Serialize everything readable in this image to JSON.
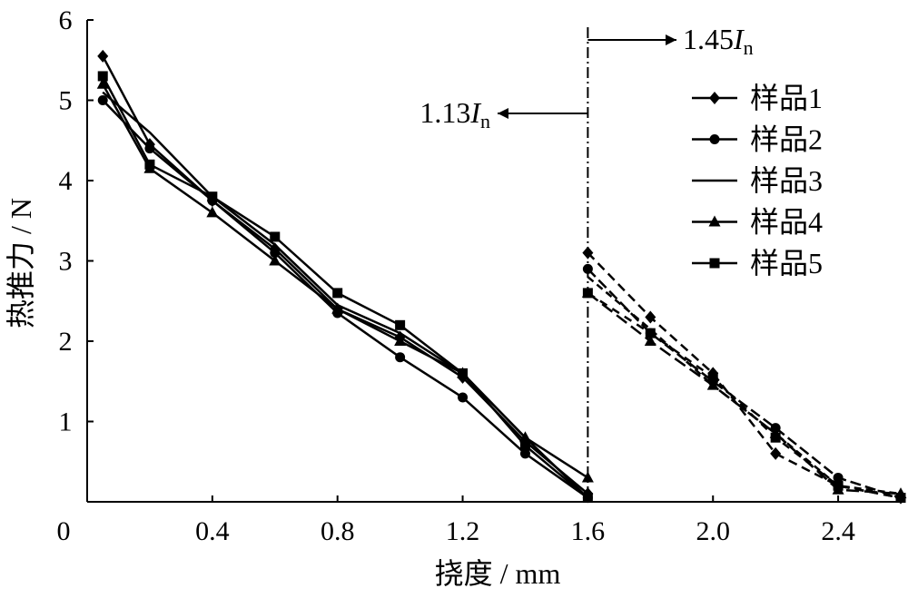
{
  "chart_data": {
    "type": "line",
    "xlabel": "挠度 / mm",
    "ylabel": "热推力 / N",
    "xlim": [
      0,
      2.6
    ],
    "ylim": [
      0,
      6
    ],
    "x_ticks": [
      {
        "value": 0,
        "label": "0"
      },
      {
        "value": 0.4,
        "label": "0.4"
      },
      {
        "value": 0.8,
        "label": "0.8"
      },
      {
        "value": 1.2,
        "label": "1.2"
      },
      {
        "value": 1.6,
        "label": "1.6"
      },
      {
        "value": 2.0,
        "label": "2.0"
      },
      {
        "value": 2.4,
        "label": "2.4"
      }
    ],
    "y_ticks": [
      {
        "value": 1,
        "label": "1"
      },
      {
        "value": 2,
        "label": "2"
      },
      {
        "value": 3,
        "label": "3"
      },
      {
        "value": 4,
        "label": "4"
      },
      {
        "value": 5,
        "label": "5"
      },
      {
        "value": 6,
        "label": "6"
      }
    ],
    "grid": false,
    "legend_position": "right",
    "divider_x": 1.6,
    "annotations": [
      {
        "name": "annot-113",
        "prefix": "1.13",
        "italic": "I",
        "sub": "n",
        "direction": "left"
      },
      {
        "name": "annot-145",
        "prefix": "1.45",
        "italic": "I",
        "sub": "n",
        "direction": "right"
      }
    ],
    "series": [
      {
        "name": "样品1",
        "marker": "diamond",
        "segment1": [
          [
            0.05,
            5.55
          ],
          [
            0.2,
            4.45
          ],
          [
            0.4,
            3.75
          ],
          [
            0.6,
            3.15
          ],
          [
            0.8,
            2.4
          ],
          [
            1.0,
            2.05
          ],
          [
            1.2,
            1.55
          ],
          [
            1.4,
            0.75
          ],
          [
            1.6,
            0.1
          ]
        ],
        "segment2": [
          [
            1.6,
            3.1
          ],
          [
            1.8,
            2.3
          ],
          [
            2.0,
            1.6
          ],
          [
            2.2,
            0.6
          ],
          [
            2.4,
            0.2
          ],
          [
            2.6,
            0.05
          ]
        ]
      },
      {
        "name": "样品2",
        "marker": "circle",
        "segment1": [
          [
            0.05,
            5.0
          ],
          [
            0.2,
            4.4
          ],
          [
            0.4,
            3.75
          ],
          [
            0.6,
            3.1
          ],
          [
            0.8,
            2.35
          ],
          [
            1.0,
            1.8
          ],
          [
            1.2,
            1.3
          ],
          [
            1.4,
            0.6
          ],
          [
            1.6,
            0.05
          ]
        ],
        "segment2": [
          [
            1.6,
            2.9
          ],
          [
            1.8,
            2.1
          ],
          [
            2.0,
            1.5
          ],
          [
            2.2,
            0.92
          ],
          [
            2.4,
            0.3
          ],
          [
            2.6,
            0.05
          ]
        ]
      },
      {
        "name": "样品3",
        "marker": "none",
        "segment1": [
          [
            0.05,
            5.1
          ],
          [
            0.2,
            4.6
          ],
          [
            0.4,
            3.8
          ],
          [
            0.6,
            3.2
          ],
          [
            0.8,
            2.45
          ],
          [
            1.0,
            2.1
          ],
          [
            1.2,
            1.6
          ],
          [
            1.4,
            0.8
          ],
          [
            1.6,
            0.05
          ]
        ],
        "segment2": [
          [
            1.6,
            2.8
          ],
          [
            1.8,
            2.15
          ],
          [
            2.0,
            1.45
          ],
          [
            2.2,
            0.85
          ],
          [
            2.4,
            0.2
          ],
          [
            2.6,
            0.1
          ]
        ]
      },
      {
        "name": "样品4",
        "marker": "triangle",
        "segment1": [
          [
            0.05,
            5.2
          ],
          [
            0.2,
            4.15
          ],
          [
            0.4,
            3.6
          ],
          [
            0.6,
            3.0
          ],
          [
            0.8,
            2.4
          ],
          [
            1.0,
            2.0
          ],
          [
            1.2,
            1.6
          ],
          [
            1.4,
            0.8
          ],
          [
            1.6,
            0.3
          ]
        ],
        "segment2": [
          [
            1.6,
            2.6
          ],
          [
            1.8,
            2.0
          ],
          [
            2.0,
            1.45
          ],
          [
            2.2,
            0.85
          ],
          [
            2.4,
            0.15
          ],
          [
            2.6,
            0.1
          ]
        ]
      },
      {
        "name": "样品5",
        "marker": "square",
        "segment1": [
          [
            0.05,
            5.3
          ],
          [
            0.2,
            4.2
          ],
          [
            0.4,
            3.8
          ],
          [
            0.6,
            3.3
          ],
          [
            0.8,
            2.6
          ],
          [
            1.0,
            2.2
          ],
          [
            1.2,
            1.6
          ],
          [
            1.4,
            0.7
          ],
          [
            1.6,
            0.05
          ]
        ],
        "segment2": [
          [
            1.6,
            2.6
          ],
          [
            1.8,
            2.1
          ],
          [
            2.0,
            1.55
          ],
          [
            2.2,
            0.8
          ],
          [
            2.4,
            0.2
          ],
          [
            2.6,
            0.05
          ]
        ]
      }
    ]
  }
}
